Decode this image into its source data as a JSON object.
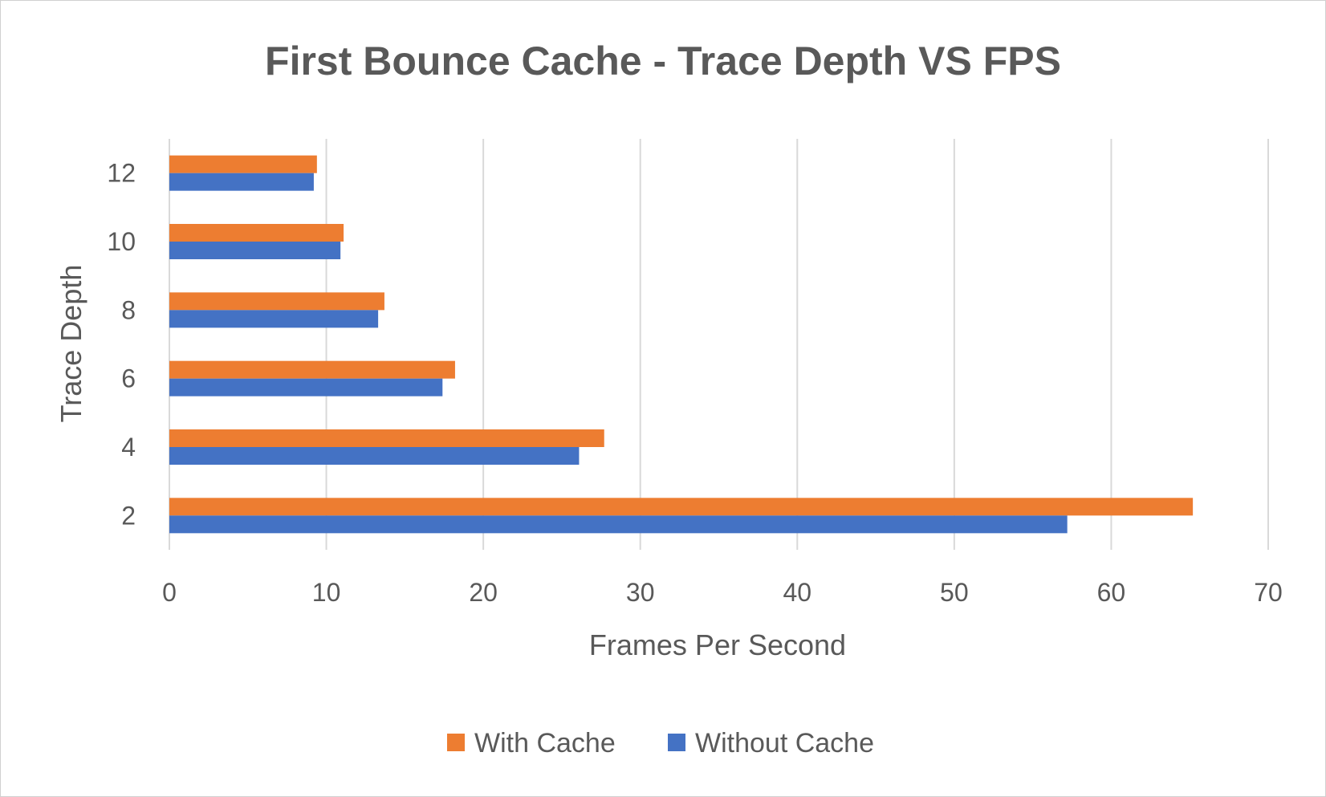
{
  "chart_data": {
    "type": "bar",
    "orientation": "horizontal",
    "title": "First Bounce Cache - Trace Depth VS FPS",
    "xlabel": "Frames Per Second",
    "ylabel": "Trace Depth",
    "categories": [
      "2",
      "4",
      "6",
      "8",
      "10",
      "12"
    ],
    "series": [
      {
        "name": "With Cache",
        "color": "#ED7D31",
        "values": [
          65.2,
          27.7,
          18.2,
          13.7,
          11.1,
          9.4
        ]
      },
      {
        "name": "Without Cache",
        "color": "#4472C4",
        "values": [
          57.2,
          26.1,
          17.4,
          13.3,
          10.9,
          9.2
        ]
      }
    ],
    "xlim": [
      0,
      70
    ],
    "xticks": [
      0,
      10,
      20,
      30,
      40,
      50,
      60,
      70
    ],
    "grid": "vertical",
    "legend": "bottom"
  }
}
